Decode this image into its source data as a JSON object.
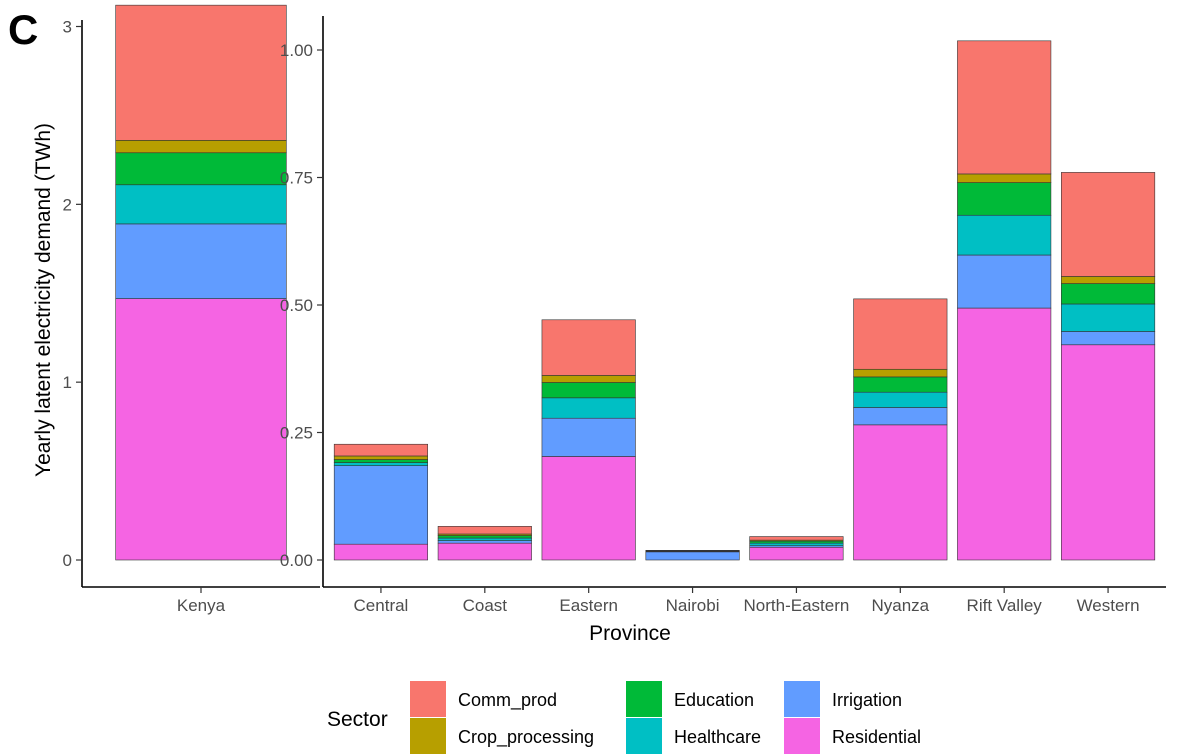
{
  "panel_label": "C",
  "ylabel": "Yearly latent electricity demand (TWh)",
  "legend": {
    "title": "Sector",
    "items": [
      {
        "name": "Comm_prod",
        "color": "#F8766D"
      },
      {
        "name": "Crop_processing",
        "color": "#B79F00"
      },
      {
        "name": "Education",
        "color": "#00BA38"
      },
      {
        "name": "Healthcare",
        "color": "#00BFC4"
      },
      {
        "name": "Irrigation",
        "color": "#619CFF"
      },
      {
        "name": "Residential",
        "color": "#F564E3"
      }
    ]
  },
  "chart_data": [
    {
      "type": "bar",
      "stacked": true,
      "categories": [
        "Kenya"
      ],
      "xlabel": "",
      "ylabel": "Yearly latent electricity demand (TWh)",
      "ylim": [
        0,
        3.2
      ],
      "yticks": [
        0,
        1,
        2,
        3
      ],
      "ytick_labels": [
        "0",
        "1",
        "2",
        "3"
      ],
      "series": [
        {
          "name": "Residential",
          "values": [
            1.47
          ]
        },
        {
          "name": "Irrigation",
          "values": [
            0.42
          ]
        },
        {
          "name": "Healthcare",
          "values": [
            0.22
          ]
        },
        {
          "name": "Education",
          "values": [
            0.18
          ]
        },
        {
          "name": "Crop_processing",
          "values": [
            0.07
          ]
        },
        {
          "name": "Comm_prod",
          "values": [
            0.76
          ]
        }
      ]
    },
    {
      "type": "bar",
      "stacked": true,
      "categories": [
        "Central",
        "Coast",
        "Eastern",
        "Nairobi",
        "North-Eastern",
        "Nyanza",
        "Rift Valley",
        "Western"
      ],
      "xlabel": "Province",
      "ylabel": "",
      "ylim": [
        0,
        1.06
      ],
      "yticks": [
        0,
        0.25,
        0.5,
        0.75,
        1.0
      ],
      "ytick_labels": [
        "0.00",
        "0.25",
        "0.50",
        "0.75",
        "1.00"
      ],
      "series": [
        {
          "name": "Residential",
          "values": [
            0.031,
            0.033,
            0.203,
            0.0,
            0.025,
            0.265,
            0.494,
            0.422
          ]
        },
        {
          "name": "Irrigation",
          "values": [
            0.154,
            0.005,
            0.075,
            0.016,
            0.003,
            0.034,
            0.104,
            0.026
          ]
        },
        {
          "name": "Healthcare",
          "values": [
            0.006,
            0.005,
            0.04,
            0.001,
            0.005,
            0.03,
            0.078,
            0.054
          ]
        },
        {
          "name": "Education",
          "values": [
            0.006,
            0.005,
            0.03,
            0.001,
            0.004,
            0.03,
            0.064,
            0.04
          ]
        },
        {
          "name": "Crop_processing",
          "values": [
            0.007,
            0.003,
            0.014,
            0.0,
            0.002,
            0.015,
            0.017,
            0.014
          ]
        },
        {
          "name": "Comm_prod",
          "values": [
            0.023,
            0.015,
            0.109,
            0.001,
            0.007,
            0.138,
            0.261,
            0.204
          ]
        }
      ]
    }
  ]
}
